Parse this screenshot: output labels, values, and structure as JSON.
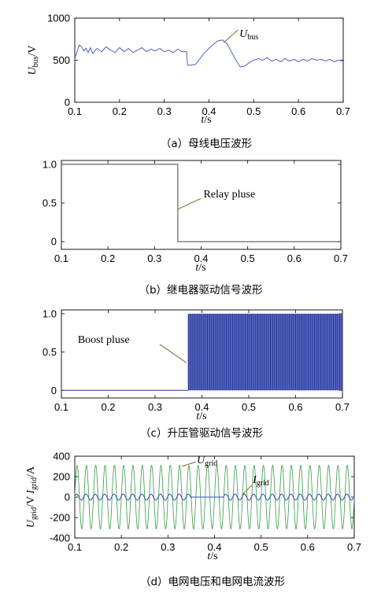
{
  "chart_data": [
    {
      "type": "line",
      "panel": "a",
      "ylabel_main": "U",
      "ylabel_sub": "bus",
      "ylabel_unit": "/V",
      "xlabel_main": "t",
      "xlabel_unit": "/s",
      "xlim": [
        0.1,
        0.7
      ],
      "ylim": [
        0,
        1000
      ],
      "xticks": [
        "0.1",
        "0.2",
        "0.3",
        "0.4",
        "0.5",
        "0.6",
        "0.7"
      ],
      "yticks": [
        "0",
        "500",
        "1000"
      ],
      "annotation_main": "U",
      "annotation_sub": "bus",
      "caption": "（a）母线电压波形",
      "series": [
        {
          "color": "#5060c8",
          "x": [
            0.1,
            0.105,
            0.11,
            0.115,
            0.12,
            0.125,
            0.13,
            0.135,
            0.14,
            0.15,
            0.16,
            0.17,
            0.18,
            0.19,
            0.2,
            0.21,
            0.22,
            0.23,
            0.24,
            0.25,
            0.26,
            0.27,
            0.28,
            0.29,
            0.3,
            0.31,
            0.32,
            0.33,
            0.34,
            0.35,
            0.352,
            0.36,
            0.37,
            0.38,
            0.39,
            0.4,
            0.41,
            0.42,
            0.43,
            0.44,
            0.45,
            0.46,
            0.47,
            0.48,
            0.49,
            0.5,
            0.51,
            0.52,
            0.53,
            0.54,
            0.55,
            0.56,
            0.57,
            0.58,
            0.59,
            0.6,
            0.61,
            0.62,
            0.63,
            0.64,
            0.65,
            0.66,
            0.67,
            0.68,
            0.69,
            0.7
          ],
          "y": [
            520,
            600,
            680,
            660,
            610,
            640,
            590,
            650,
            580,
            640,
            600,
            660,
            620,
            590,
            650,
            600,
            640,
            590,
            620,
            650,
            600,
            630,
            610,
            640,
            600,
            620,
            590,
            630,
            600,
            600,
            440,
            440,
            450,
            520,
            590,
            640,
            690,
            730,
            740,
            700,
            600,
            500,
            420,
            430,
            470,
            500,
            520,
            500,
            530,
            490,
            510,
            480,
            520,
            490,
            510,
            480,
            510,
            490,
            520,
            500,
            510,
            490,
            510,
            480,
            500,
            490
          ]
        }
      ]
    },
    {
      "type": "line",
      "panel": "b",
      "xlabel_main": "t",
      "xlabel_unit": "/s",
      "xlim": [
        0.1,
        0.7
      ],
      "ylim": [
        -0.1,
        1.05
      ],
      "xticks": [
        "0.1",
        "0.2",
        "0.3",
        "0.4",
        "0.5",
        "0.6",
        "0.7"
      ],
      "yticks": [
        "0",
        "0.5",
        "1.0"
      ],
      "annotation": "Relay pluse",
      "caption": "（b）继电器驱动信号波形",
      "series": [
        {
          "color": "#444444",
          "x": [
            0.1,
            0.35,
            0.35,
            0.7
          ],
          "y": [
            1,
            1,
            0,
            0
          ]
        }
      ]
    },
    {
      "type": "line",
      "panel": "c",
      "xlabel_main": "t",
      "xlabel_unit": "/s",
      "xlim": [
        0.1,
        0.7
      ],
      "ylim": [
        -0.1,
        1.05
      ],
      "xticks": [
        "0.1",
        "0.2",
        "0.3",
        "0.4",
        "0.5",
        "0.6",
        "0.7"
      ],
      "yticks": [
        "0",
        "0.5",
        "1.0"
      ],
      "annotation": "Boost pluse",
      "caption": "（c）升压管驱动信号波形",
      "pwm_start": 0.37,
      "pwm_end": 0.7,
      "pwm_high": 1,
      "pwm_low": 0,
      "series": [
        {
          "color": "#2a3a9a",
          "x": [
            0.1,
            0.37
          ],
          "y": [
            0,
            0
          ]
        }
      ]
    },
    {
      "type": "line",
      "panel": "d",
      "ylabel_main1": "U",
      "ylabel_sub1": "grid",
      "ylabel_unit1": "/V",
      "ylabel_main2": "I",
      "ylabel_sub2": "grid",
      "ylabel_unit2": "/A",
      "xlabel_main": "t",
      "xlabel_unit": "/s",
      "xlim": [
        0.1,
        0.7
      ],
      "ylim": [
        -400,
        400
      ],
      "xticks": [
        "0.1",
        "0.2",
        "0.3",
        "0.4",
        "0.5",
        "0.6",
        "0.7"
      ],
      "yticks": [
        "-400",
        "-200",
        "0",
        "200",
        "400"
      ],
      "annotation1_main": "U",
      "annotation1_sub": "grid",
      "annotation2_main": "I",
      "annotation2_sub": "grid",
      "caption": "（d）电网电压和电网电流波形",
      "grid_voltage": {
        "color": "#3a9a4a",
        "amplitude": 311,
        "frequency_hz": 50
      },
      "grid_current": {
        "color": "#3050b0",
        "amplitude": 30,
        "frequency_hz": 50,
        "off_start": 0.35,
        "off_end": 0.42
      }
    }
  ]
}
